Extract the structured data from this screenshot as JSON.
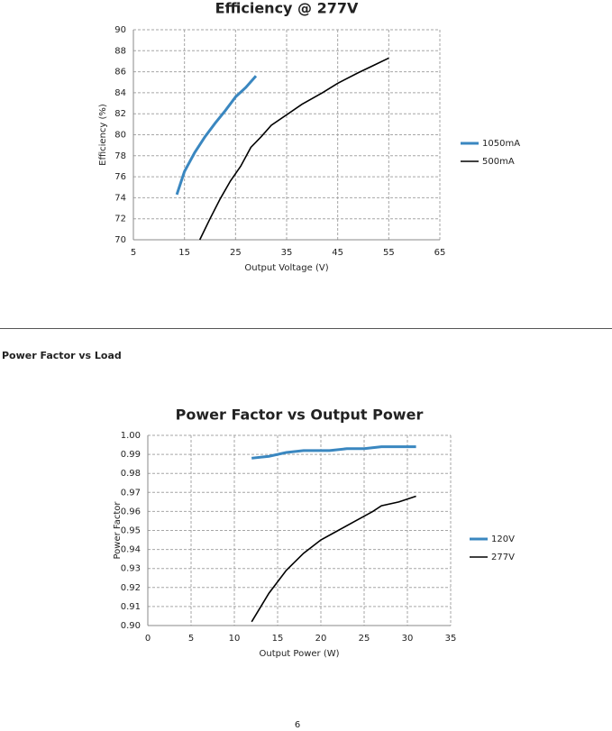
{
  "chart_data": [
    {
      "type": "line",
      "title": "Efficiency @ 277V",
      "x_label": "Output Voltage (V)",
      "y_label": "Efficiency (%)",
      "xlim": [
        5,
        65
      ],
      "xticks": [
        5,
        15,
        25,
        35,
        45,
        55,
        65
      ],
      "ylim": [
        70,
        90
      ],
      "yticks": [
        70,
        72,
        74,
        76,
        78,
        80,
        82,
        84,
        86,
        88,
        90
      ],
      "grid": true,
      "legend": "right",
      "series": [
        {
          "name": "1050mA",
          "color": "#3a87c0",
          "x": [
            13.5,
            15,
            17,
            19,
            21,
            23,
            25,
            27,
            29
          ],
          "values": [
            74.3,
            76.5,
            78.3,
            79.8,
            81.1,
            82.3,
            83.6,
            84.5,
            85.6
          ]
        },
        {
          "name": "500mA",
          "color": "#000000",
          "x": [
            18,
            20,
            22,
            24,
            26,
            28,
            30,
            32,
            35,
            38,
            42,
            45,
            49,
            52,
            55
          ],
          "values": [
            70,
            72,
            73.9,
            75.6,
            77,
            78.8,
            79.8,
            80.9,
            81.9,
            82.9,
            84,
            84.9,
            85.9,
            86.6,
            87.3
          ]
        }
      ]
    },
    {
      "type": "line",
      "title": "Power Factor vs Output Power",
      "x_label": "Output Power (W)",
      "y_label": "Power Factor",
      "xlim": [
        0,
        35
      ],
      "xticks": [
        0,
        5,
        10,
        15,
        20,
        25,
        30,
        35
      ],
      "ylim": [
        0.9,
        1.0
      ],
      "yticks": [
        {
          "value": 0.9,
          "label": "0.90"
        },
        0.91,
        0.92,
        0.93,
        0.94,
        0.95,
        0.96,
        0.97,
        0.98,
        0.99,
        {
          "value": 1.0,
          "label": "1.00"
        }
      ],
      "grid": true,
      "legend": "right",
      "series": [
        {
          "name": "120V",
          "color": "#3a87c0",
          "x": [
            12,
            14,
            16,
            18,
            21,
            23,
            25,
            27,
            31
          ],
          "values": [
            0.988,
            0.989,
            0.991,
            0.992,
            0.992,
            0.993,
            0.993,
            0.994,
            0.994
          ]
        },
        {
          "name": "277V",
          "color": "#000000",
          "x": [
            12,
            14,
            16,
            18,
            20,
            22,
            24,
            26,
            27,
            29,
            31
          ],
          "values": [
            0.902,
            0.917,
            0.929,
            0.938,
            0.945,
            0.95,
            0.955,
            0.96,
            0.963,
            0.965,
            0.968
          ]
        }
      ]
    }
  ],
  "section_heading": "Power Factor vs Load",
  "page_number": "6"
}
